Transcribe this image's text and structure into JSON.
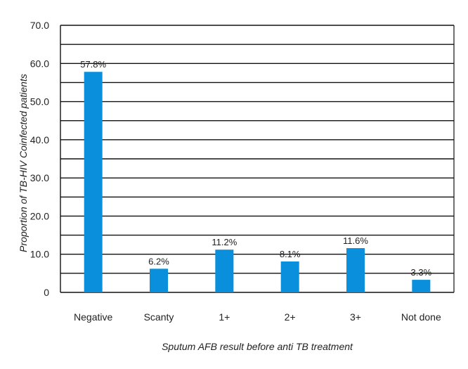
{
  "chart_data": {
    "type": "bar",
    "title": "",
    "xlabel": "Sputum AFB result before anti TB treatment",
    "ylabel": "Proportion of TB-HIV Coinfected patients",
    "categories": [
      "Negative",
      "Scanty",
      "1+",
      "2+",
      "3+",
      "Not done"
    ],
    "values": [
      57.8,
      6.2,
      11.2,
      8.1,
      11.6,
      3.3
    ],
    "data_labels": [
      "57.8%",
      "6.2%",
      "11.2%",
      "8.1%",
      "11.6%",
      "3.3%"
    ],
    "y_tick_labels": [
      "0",
      "10.0",
      "20.0",
      "30.0",
      "40.0",
      "50.0",
      "60.0",
      "70.0"
    ],
    "ylim": [
      0,
      70
    ],
    "bar_color": "#0a8fdc",
    "grid": true
  }
}
